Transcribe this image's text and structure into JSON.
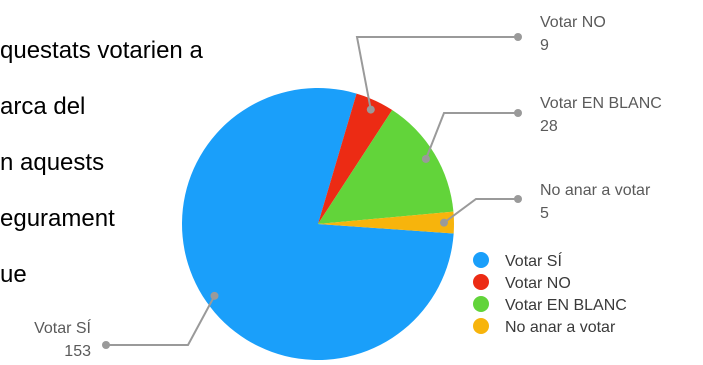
{
  "background_text": [
    "questats votarien a",
    "arca del",
    "n aquests",
    "egurament",
    "ue"
  ],
  "chart_data": {
    "type": "pie",
    "categories": [
      "Votar SÍ",
      "Votar NO",
      "Votar EN BLANC",
      "No anar a votar"
    ],
    "values": [
      153,
      9,
      28,
      5
    ],
    "colors": [
      "#1a9ffa",
      "#ec2b14",
      "#62d43a",
      "#f7b40c"
    ],
    "title": "",
    "legend_position": "bottom-right"
  }
}
